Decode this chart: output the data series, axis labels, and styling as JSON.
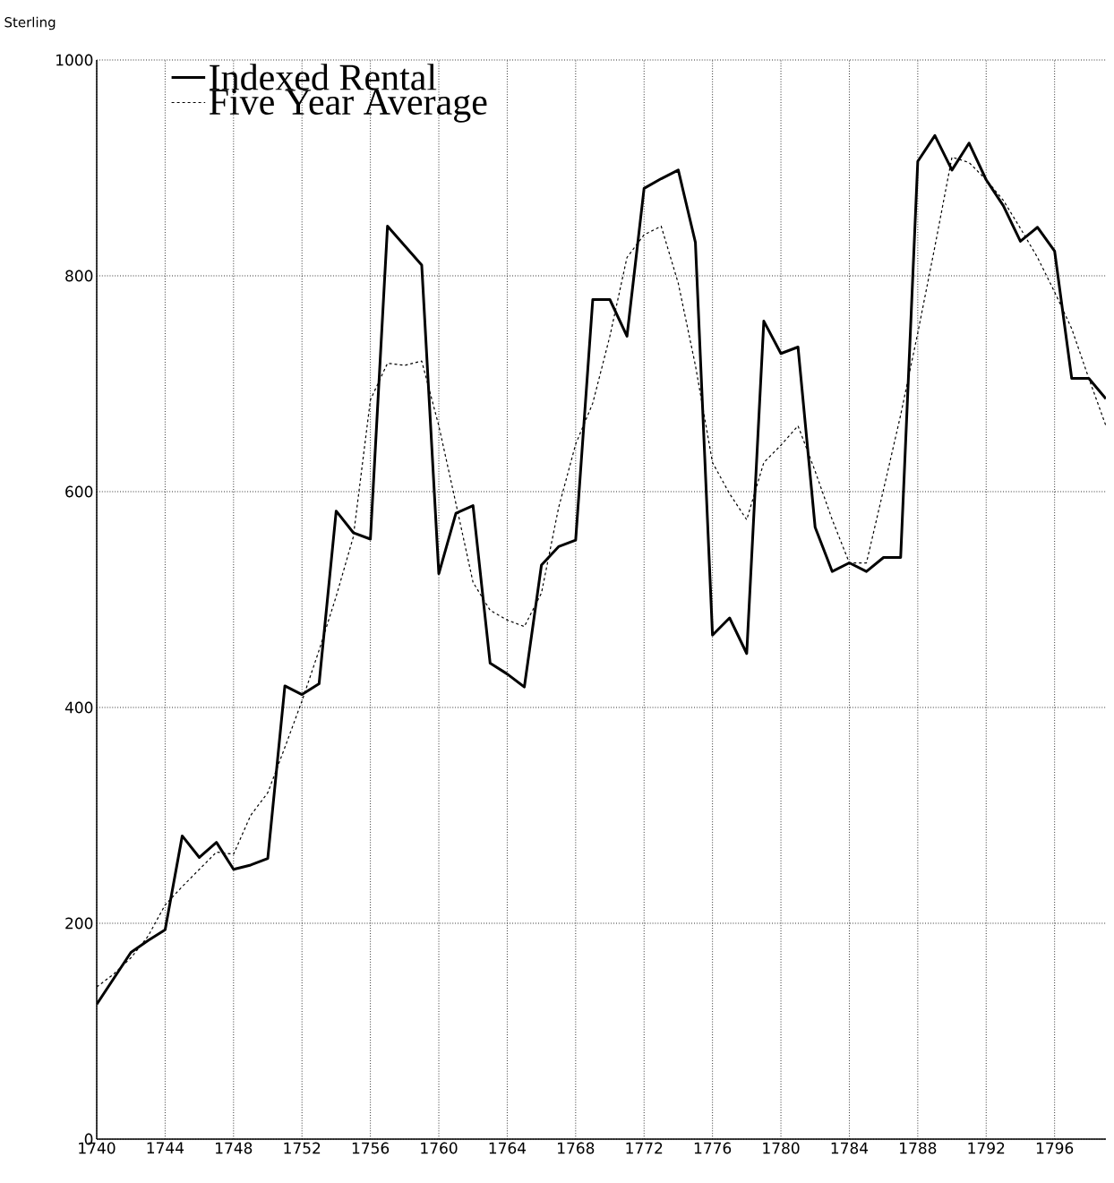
{
  "chart_data": {
    "type": "line",
    "ylabel": "Sterling",
    "x": [
      1740,
      1741,
      1742,
      1743,
      1744,
      1745,
      1746,
      1747,
      1748,
      1749,
      1750,
      1751,
      1752,
      1753,
      1754,
      1755,
      1756,
      1757,
      1758,
      1759,
      1760,
      1761,
      1762,
      1763,
      1764,
      1765,
      1766,
      1767,
      1768,
      1769,
      1770,
      1771,
      1772,
      1773,
      1774,
      1775,
      1776,
      1777,
      1778,
      1779,
      1780,
      1781,
      1782,
      1783,
      1784,
      1785,
      1786,
      1787,
      1788,
      1789,
      1790,
      1791,
      1792,
      1793,
      1794,
      1795,
      1796,
      1797,
      1798,
      1799
    ],
    "series": [
      {
        "name": "Indexed Rental",
        "color": "#000000",
        "line_style": "solid",
        "values": [
          125,
          149,
          173,
          184,
          194,
          281,
          261,
          275,
          250,
          254,
          260,
          420,
          412,
          422,
          582,
          562,
          556,
          846,
          828,
          810,
          524,
          580,
          587,
          441,
          431,
          419,
          532,
          549,
          555,
          778,
          778,
          744,
          881,
          890,
          898,
          831,
          467,
          483,
          450,
          758,
          728,
          734,
          567,
          526,
          534,
          526,
          539,
          539,
          906,
          930,
          898,
          923,
          889,
          865,
          832,
          845,
          823,
          705,
          705,
          686
        ]
      },
      {
        "name": "Five Year Average",
        "color": "#000000",
        "line_style": "dashed",
        "values": [
          141,
          153,
          168,
          188,
          217,
          234,
          250,
          266,
          264,
          300,
          321,
          363,
          406,
          453,
          503,
          558,
          685,
          719,
          717,
          721,
          661,
          589,
          516,
          490,
          481,
          475,
          506,
          585,
          644,
          682,
          744,
          817,
          838,
          846,
          793,
          717,
          627,
          598,
          574,
          627,
          643,
          661,
          619,
          574,
          534,
          534,
          602,
          671,
          747,
          827,
          910,
          905,
          889,
          870,
          844,
          817,
          785,
          751,
          705,
          661
        ]
      }
    ],
    "xlim": [
      1740,
      1799
    ],
    "ylim": [
      0,
      1000
    ],
    "xticks": [
      1740,
      1744,
      1748,
      1752,
      1756,
      1760,
      1764,
      1768,
      1772,
      1776,
      1780,
      1784,
      1788,
      1792,
      1796
    ],
    "yticks": [
      0,
      200,
      400,
      600,
      800,
      1000
    ],
    "grid": true,
    "legend": "top left",
    "marker": "none"
  }
}
